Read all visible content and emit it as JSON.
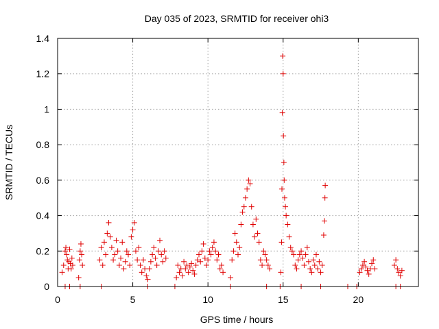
{
  "chart_data": {
    "type": "scatter",
    "title": "Day 035 of 2023, SRMTID for receiver ohi3",
    "xlabel": "GPS time / hours",
    "ylabel": "SRMTID / TECUs",
    "xlim": [
      0,
      24
    ],
    "ylim": [
      0,
      1.4
    ],
    "xticks": [
      0,
      5,
      10,
      15,
      20
    ],
    "yticks": [
      0,
      0.2,
      0.4,
      0.6,
      0.8,
      1,
      1.2,
      1.4
    ],
    "grid": true,
    "marker": "+",
    "color": "#e00000",
    "series": [
      {
        "name": "SRMTID",
        "x": [
          0.3,
          0.4,
          0.5,
          0.55,
          0.6,
          0.65,
          0.7,
          0.75,
          0.8,
          0.85,
          0.9,
          0.95,
          1.0,
          1.4,
          1.45,
          1.5,
          1.55,
          1.6,
          1.65,
          2.8,
          2.9,
          3.0,
          3.1,
          3.2,
          3.3,
          3.4,
          3.5,
          3.6,
          3.7,
          3.8,
          3.9,
          4.0,
          4.1,
          4.2,
          4.3,
          4.4,
          4.5,
          4.6,
          4.7,
          4.8,
          4.9,
          5.0,
          5.1,
          5.2,
          5.3,
          5.4,
          5.5,
          5.6,
          5.7,
          5.8,
          5.9,
          6.0,
          6.1,
          6.2,
          6.3,
          6.4,
          6.5,
          6.6,
          6.7,
          6.8,
          6.9,
          7.0,
          7.1,
          7.2,
          7.9,
          8.0,
          8.1,
          8.2,
          8.3,
          8.4,
          8.5,
          8.6,
          8.7,
          8.8,
          8.9,
          9.0,
          9.1,
          9.2,
          9.3,
          9.4,
          9.5,
          9.6,
          9.7,
          9.8,
          9.9,
          10.0,
          10.1,
          10.2,
          10.3,
          10.4,
          10.5,
          10.6,
          10.7,
          10.8,
          10.9,
          11.0,
          11.5,
          11.6,
          11.7,
          11.8,
          11.9,
          12.0,
          12.1,
          12.2,
          12.3,
          12.4,
          12.5,
          12.6,
          12.7,
          12.8,
          12.9,
          13.0,
          13.1,
          13.2,
          13.3,
          13.4,
          13.5,
          13.6,
          13.7,
          13.8,
          13.9,
          14.0,
          14.1,
          14.85,
          14.9,
          14.92,
          14.95,
          14.97,
          15.0,
          15.02,
          15.05,
          15.07,
          15.1,
          15.15,
          15.2,
          15.3,
          15.4,
          15.5,
          15.6,
          15.7,
          15.8,
          15.9,
          16.0,
          16.1,
          16.2,
          16.3,
          16.4,
          16.5,
          16.6,
          16.7,
          16.8,
          16.9,
          17.0,
          17.1,
          17.2,
          17.3,
          17.4,
          17.5,
          17.6,
          17.7,
          17.75,
          17.78,
          17.8,
          20.1,
          20.2,
          20.3,
          20.4,
          20.5,
          20.6,
          20.7,
          20.8,
          20.9,
          21.0,
          21.1,
          22.4,
          22.5,
          22.6,
          22.7,
          22.8,
          22.9,
          0.5,
          0.8,
          1.5,
          2.9,
          6.0,
          7.8,
          11.5,
          13.9,
          14.8,
          16.2,
          17.5,
          19.3,
          19.9,
          22.5,
          22.8
        ],
        "y": [
          0.08,
          0.12,
          0.2,
          0.22,
          0.18,
          0.15,
          0.1,
          0.14,
          0.21,
          0.13,
          0.1,
          0.16,
          0.12,
          0.05,
          0.15,
          0.2,
          0.24,
          0.18,
          0.12,
          0.15,
          0.22,
          0.12,
          0.25,
          0.18,
          0.3,
          0.36,
          0.28,
          0.22,
          0.15,
          0.18,
          0.26,
          0.2,
          0.12,
          0.16,
          0.25,
          0.1,
          0.14,
          0.2,
          0.18,
          0.12,
          0.28,
          0.32,
          0.36,
          0.2,
          0.15,
          0.22,
          0.12,
          0.08,
          0.15,
          0.1,
          0.06,
          0.04,
          0.1,
          0.14,
          0.18,
          0.22,
          0.16,
          0.12,
          0.2,
          0.26,
          0.18,
          0.14,
          0.2,
          0.16,
          0.05,
          0.12,
          0.08,
          0.1,
          0.06,
          0.14,
          0.1,
          0.12,
          0.08,
          0.11,
          0.13,
          0.09,
          0.07,
          0.12,
          0.15,
          0.18,
          0.14,
          0.2,
          0.24,
          0.16,
          0.12,
          0.15,
          0.2,
          0.18,
          0.22,
          0.25,
          0.2,
          0.15,
          0.18,
          0.1,
          0.12,
          0.08,
          0.05,
          0.15,
          0.2,
          0.3,
          0.25,
          0.18,
          0.22,
          0.35,
          0.42,
          0.45,
          0.5,
          0.55,
          0.6,
          0.58,
          0.45,
          0.35,
          0.28,
          0.38,
          0.3,
          0.25,
          0.15,
          0.12,
          0.2,
          0.18,
          0.15,
          0.12,
          0.1,
          0.08,
          0.25,
          0.55,
          0.98,
          1.3,
          1.2,
          0.85,
          0.7,
          0.6,
          0.5,
          0.45,
          0.4,
          0.35,
          0.28,
          0.22,
          0.2,
          0.18,
          0.12,
          0.1,
          0.15,
          0.18,
          0.2,
          0.16,
          0.12,
          0.18,
          0.22,
          0.14,
          0.1,
          0.08,
          0.15,
          0.12,
          0.18,
          0.1,
          0.14,
          0.08,
          0.12,
          0.29,
          0.37,
          0.5,
          0.57,
          0.08,
          0.1,
          0.12,
          0.14,
          0.11,
          0.09,
          0.07,
          0.1,
          0.13,
          0.15,
          0.1,
          0.12,
          0.15,
          0.1,
          0.08,
          0.06,
          0.09,
          0,
          0,
          0,
          0,
          0,
          0,
          0,
          0,
          0,
          0,
          0,
          0,
          0,
          0,
          0
        ]
      }
    ]
  }
}
